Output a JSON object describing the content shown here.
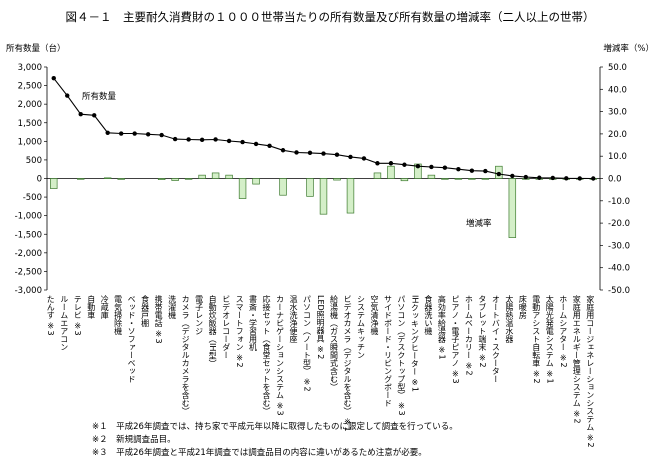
{
  "chart_data": {
    "type": "bar+line",
    "title": "図４－１　主要耐久消費財の１０００世帯当たりの所有数量及び所有数量の増減率（二人以上の世帯）",
    "ylabel_left": "所有数量（台）",
    "ylabel_right": "増減率（%）",
    "ylim_left": [
      -3000,
      3000
    ],
    "ylim_right": [
      -50,
      50
    ],
    "yticks_left": [
      "3,000",
      "2,500",
      "2,000",
      "1,500",
      "1,000",
      "500",
      "0",
      "-500",
      "-1,000",
      "-1,500",
      "-2,000",
      "-2,500",
      "-3,000"
    ],
    "yticks_right": [
      "50.0",
      "40.0",
      "30.0",
      "20.0",
      "10.0",
      "0.0",
      "-10.0",
      "-20.0",
      "-30.0",
      "-40.0",
      "-50.0"
    ],
    "line_series_label": "所有数量",
    "bar_series_label": "増減率",
    "categories": [
      "たんす ※3",
      "ルームエアコン",
      "テレビ ※3",
      "自動車",
      "冷蔵庫",
      "電気掃除機",
      "ベッド・ソファーベッド",
      "食器戸棚",
      "携帯電話 ※3",
      "洗濯機",
      "カメラ（デジタルカメラを含む）",
      "電子レンジ",
      "自動炊飯器（IH型）",
      "ビデオレコーダー",
      "スマートフォン ※2",
      "書斎・学習用机",
      "応接セット（食堂セットを含む）",
      "カーナビゲーションシステム ※3",
      "温水洗浄便座",
      "パソコン（ノート型） ※2",
      "LED照明器具 ※2",
      "給湯機（ガス瞬間式含む）",
      "ビデオカメラ（デジタルを含む） ※1",
      "システムキッチン",
      "空気清浄機",
      "サイドボード・リビングボード",
      "パソコン（デスクトップ型） ※3",
      "IHクッキングヒーター ※1",
      "食器洗い機",
      "高効率給湯器 ※1",
      "ピアノ・電子ピアノ ※3",
      "ホームベーカリー ※2",
      "タブレット端末 ※2",
      "オートバイ・スクーター",
      "太陽熱温水器",
      "床暖房",
      "電動アシスト自転車 ※2",
      "太陽光発電システム ※1",
      "ホームシアター ※2",
      "家庭用エネルギー管理システム ※2",
      "家庭用コージェネレーションシステム ※2"
    ],
    "owned_quantity": [
      2700,
      2230,
      1730,
      1700,
      1230,
      1210,
      1210,
      1190,
      1170,
      1060,
      1050,
      1040,
      1050,
      1010,
      980,
      930,
      880,
      760,
      700,
      690,
      670,
      640,
      580,
      540,
      410,
      410,
      370,
      330,
      310,
      290,
      250,
      210,
      200,
      120,
      70,
      40,
      20,
      15,
      5,
      2,
      0
    ],
    "change_rate": [
      -4.5,
      0,
      -0.3,
      0,
      0.3,
      -0.4,
      0,
      0,
      -0.5,
      -0.9,
      -0.3,
      1.5,
      2.5,
      1.5,
      -9.0,
      -2.5,
      0,
      -7.5,
      0,
      -8.0,
      -16.0,
      -0.7,
      -15.5,
      0,
      2.5,
      5.5,
      -1.0,
      6.5,
      1.5,
      -0.3,
      -0.3,
      -0.3,
      -0.3,
      5.5,
      -26.5,
      -0.3,
      -0.3,
      -0.3,
      -0.3,
      -0.3,
      -0.3
    ],
    "grid": false,
    "legend": "inline labels"
  },
  "notes": [
    "※１　平成26年調査では、持ち家で平成元年以降に取得したものに限定して調査を行っている。",
    "※２　新規調査品目。",
    "※３　平成26年調査と平成21年調査では調査品目の内容に違いがあるため注意が必要。"
  ]
}
